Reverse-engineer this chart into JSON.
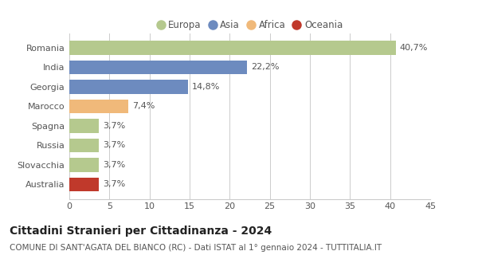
{
  "categories": [
    "Romania",
    "India",
    "Georgia",
    "Marocco",
    "Spagna",
    "Russia",
    "Slovacchia",
    "Australia"
  ],
  "values": [
    40.7,
    22.2,
    14.8,
    7.4,
    3.7,
    3.7,
    3.7,
    3.7
  ],
  "labels": [
    "40,7%",
    "22,2%",
    "14,8%",
    "7,4%",
    "3,7%",
    "3,7%",
    "3,7%",
    "3,7%"
  ],
  "colors": [
    "#b5c98e",
    "#6d8bbf",
    "#6d8bbf",
    "#f0b97a",
    "#b5c98e",
    "#b5c98e",
    "#b5c98e",
    "#c0392b"
  ],
  "legend": [
    {
      "label": "Europa",
      "color": "#b5c98e"
    },
    {
      "label": "Asia",
      "color": "#6d8bbf"
    },
    {
      "label": "Africa",
      "color": "#f0b97a"
    },
    {
      "label": "Oceania",
      "color": "#c0392b"
    }
  ],
  "xlim": [
    0,
    45
  ],
  "xticks": [
    0,
    5,
    10,
    15,
    20,
    25,
    30,
    35,
    40,
    45
  ],
  "title": "Cittadini Stranieri per Cittadinanza - 2024",
  "subtitle": "COMUNE DI SANT'AGATA DEL BIANCO (RC) - Dati ISTAT al 1° gennaio 2024 - TUTTITALIA.IT",
  "title_fontsize": 10,
  "subtitle_fontsize": 7.5,
  "label_fontsize": 8,
  "tick_fontsize": 8,
  "legend_fontsize": 8.5,
  "bar_height": 0.72,
  "background_color": "#ffffff",
  "grid_color": "#cccccc"
}
